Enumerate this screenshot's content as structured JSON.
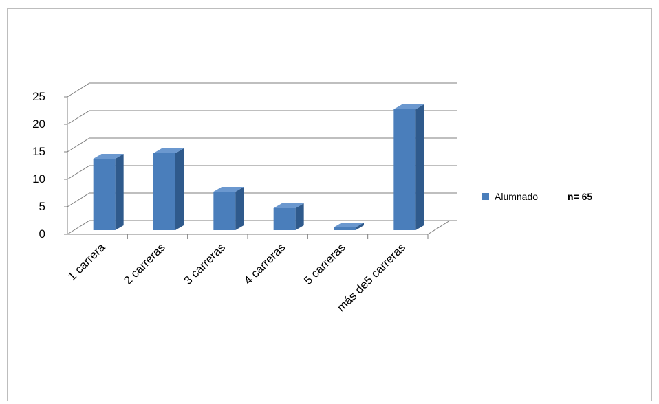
{
  "chart_data": {
    "type": "bar",
    "categories": [
      "1 carrera",
      "2 carreras",
      "3 carreras",
      "4 carreras",
      "5 carreras",
      "más de5 carreras"
    ],
    "series": [
      {
        "name": "Alumnado",
        "values": [
          13,
          14,
          7,
          4,
          0.5,
          22
        ]
      }
    ],
    "yticks": [
      "0",
      "5",
      "10",
      "15",
      "20",
      "25"
    ],
    "ylim": [
      0,
      25
    ],
    "grid": true,
    "style": "3d-column",
    "legend": {
      "position": "right",
      "label": "Alumnado",
      "note": "n= 65"
    },
    "colors": {
      "bar_front": "#4a7ebb",
      "bar_side": "#2f5a8c",
      "bar_top": "#6b98cf",
      "grid": "#7f7f7f"
    }
  }
}
